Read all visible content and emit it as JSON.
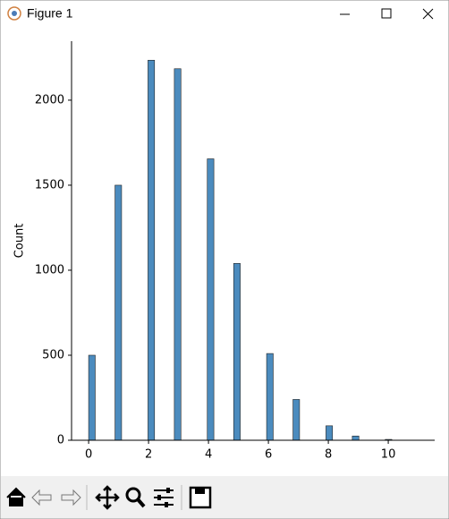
{
  "window": {
    "title": "Figure 1"
  },
  "chart_data": {
    "type": "histogram",
    "ylabel": "Count",
    "bins": [
      0,
      0.22,
      0.44,
      0.66,
      0.88,
      1.1,
      1.32,
      1.54,
      1.76,
      1.98,
      2.2,
      2.42,
      2.64,
      2.86,
      3.08,
      3.3,
      3.52,
      3.74,
      3.96,
      4.18,
      4.4,
      4.62,
      4.84,
      5.06,
      5.28,
      5.5,
      5.72,
      5.94,
      6.16,
      6.38,
      6.6,
      6.82,
      7.04,
      7.26,
      7.48,
      7.7,
      7.92,
      8.14,
      8.36,
      8.58,
      8.8,
      9.02,
      9.24,
      9.46,
      9.68,
      9.9,
      10.12,
      10.34,
      10.56,
      10.78,
      11
    ],
    "values": [
      500,
      0,
      0,
      0,
      1500,
      0,
      0,
      0,
      0,
      2235,
      0,
      0,
      0,
      2185,
      0,
      0,
      0,
      0,
      1655,
      0,
      0,
      0,
      1040,
      0,
      0,
      0,
      0,
      510,
      0,
      0,
      0,
      240,
      0,
      0,
      0,
      0,
      85,
      0,
      0,
      0,
      25,
      0,
      0,
      0,
      0,
      5,
      0,
      0,
      0,
      1
    ],
    "color": "#4b8bbe",
    "xlim": [
      -0.57,
      11.55
    ],
    "xticks": [
      0,
      2,
      4,
      6,
      8,
      10
    ],
    "ylim": [
      0,
      2347
    ],
    "yticks": [
      0,
      500,
      1000,
      1500,
      2000
    ]
  }
}
